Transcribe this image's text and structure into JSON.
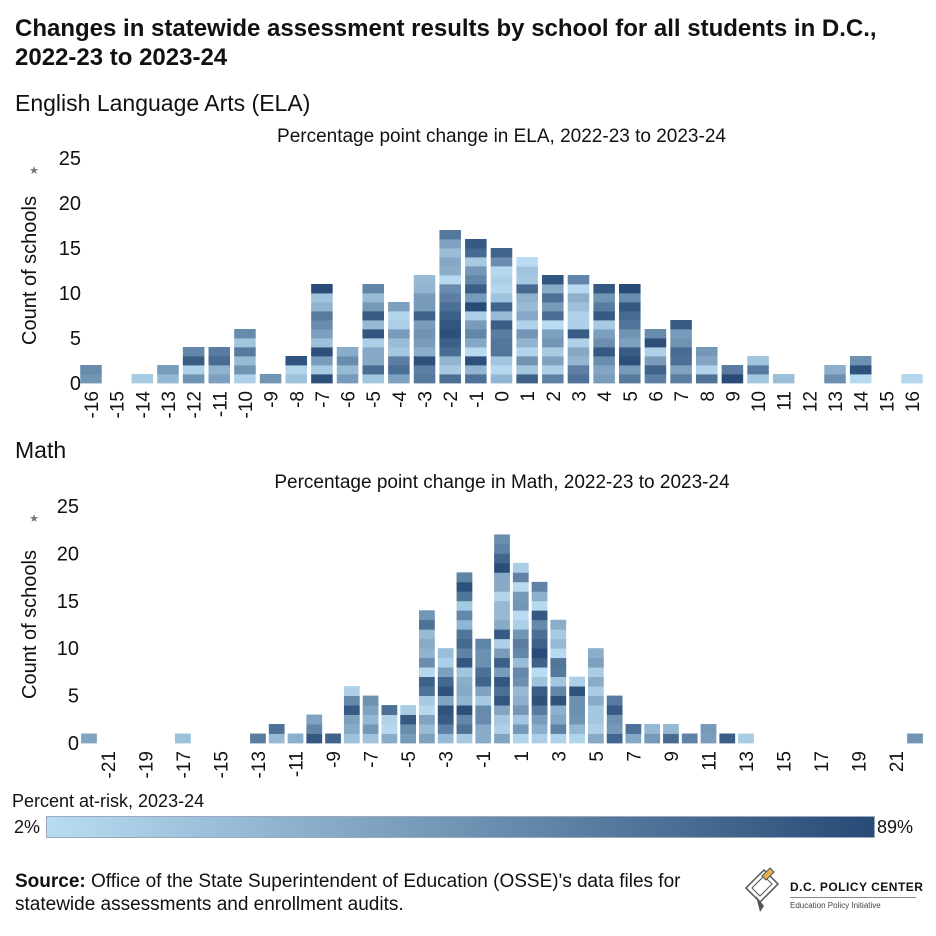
{
  "title": "Changes in statewide assessment results by school for all students in D.C., 2022-23 to 2023-24",
  "colors": {
    "light": "#b9dcf2",
    "dark": "#274b76",
    "grid": "#e3e3e3",
    "text": "#111111"
  },
  "charts": {
    "ela": {
      "section_title": "English Language Arts (ELA)",
      "chart_data": {
        "type": "bar",
        "stacked": true,
        "title": "Percentage point change in ELA, 2022-23 to 2023-24",
        "ylabel": "Count of schools",
        "ylim": [
          0,
          25
        ],
        "y_ticks": [
          0,
          5,
          10,
          15,
          20,
          25
        ],
        "grid": false,
        "legend": "bottom",
        "x": [
          -16,
          -15,
          -14,
          -13,
          -12,
          -11,
          -10,
          -9,
          -8,
          -7,
          -6,
          -5,
          -4,
          -3,
          -2,
          -1,
          0,
          1,
          2,
          3,
          4,
          5,
          6,
          7,
          8,
          9,
          10,
          11,
          12,
          13,
          14,
          15,
          16
        ],
        "x_tick_labels": [
          "-16",
          "-15",
          "-14",
          "-13",
          "-12",
          "-11",
          "-10",
          "-9",
          "-8",
          "-7",
          "-6",
          "-5",
          "-4",
          "-3",
          "-2",
          "-1",
          "0",
          "1",
          "2",
          "3",
          "4",
          "5",
          "6",
          "7",
          "8",
          "9",
          "10",
          "11",
          "12",
          "13",
          "14",
          "15",
          "16"
        ],
        "values": [
          2,
          0,
          1,
          2,
          4,
          4,
          6,
          1,
          3,
          11,
          4,
          11,
          9,
          12,
          17,
          16,
          15,
          14,
          12,
          12,
          11,
          11,
          6,
          7,
          4,
          2,
          3,
          1,
          0,
          2,
          3,
          0,
          1
        ]
      }
    },
    "math": {
      "section_title": "Math",
      "chart_data": {
        "type": "bar",
        "stacked": true,
        "title": "Percentage point change in Math, 2022-23 to 2023-24",
        "ylabel": "Count of schools",
        "ylim": [
          0,
          25
        ],
        "y_ticks": [
          0,
          5,
          10,
          15,
          20,
          25
        ],
        "grid": false,
        "legend": "bottom",
        "x": [
          -22,
          -21,
          -20,
          -19,
          -18,
          -17,
          -16,
          -15,
          -14,
          -13,
          -12,
          -11,
          -10,
          -9,
          -8,
          -7,
          -6,
          -5,
          -4,
          -3,
          -2,
          -1,
          0,
          1,
          2,
          3,
          4,
          5,
          6,
          7,
          8,
          9,
          10,
          11,
          12,
          13,
          14,
          15,
          16,
          17,
          18,
          19,
          20,
          21,
          22
        ],
        "x_tick_labels": [
          "-21",
          "-19",
          "-17",
          "-15",
          "-13",
          "-11",
          "-9",
          "-7",
          "-5",
          "-3",
          "-1",
          "1",
          "3",
          "5",
          "7",
          "9",
          "11",
          "13",
          "15",
          "17",
          "19",
          "21"
        ],
        "values": [
          1,
          0,
          0,
          0,
          0,
          1,
          0,
          0,
          0,
          1,
          2,
          1,
          3,
          1,
          6,
          5,
          4,
          4,
          14,
          10,
          18,
          11,
          22,
          19,
          17,
          13,
          7,
          10,
          5,
          2,
          2,
          2,
          1,
          2,
          1,
          1,
          0,
          0,
          0,
          0,
          0,
          0,
          0,
          0,
          1
        ]
      }
    }
  },
  "legend": {
    "title": "Percent at-risk, 2023-24",
    "min_label": "2%",
    "max_label": "89%"
  },
  "source": {
    "label": "Source:",
    "text": "Office of the State Superintendent of Education (OSSE)'s data files for statewide assessments and enrollment audits."
  },
  "logo": {
    "name": "D.C. POLICY CENTER",
    "subtitle": "Education Policy Initiative"
  }
}
